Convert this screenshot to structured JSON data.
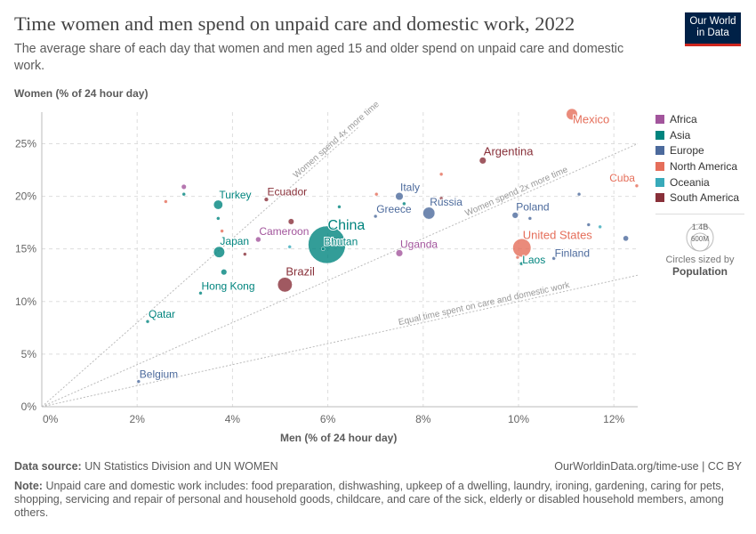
{
  "header": {
    "title": "Time women and men spend on unpaid care and domestic work, 2022",
    "subtitle": "The average share of each day that women and men aged 15 and older spend on unpaid care and domestic work.",
    "logo": "Our World in Data"
  },
  "chart_data": {
    "type": "scatter",
    "title": "Time women and men spend on unpaid care and domestic work, 2022",
    "xlabel": "Men (% of 24 hour day)",
    "ylabel": "Women (% of 24 hour day)",
    "xlim": [
      0,
      12.5
    ],
    "ylim": [
      0,
      28
    ],
    "xticks": [
      "0%",
      "2%",
      "4%",
      "6%",
      "8%",
      "10%",
      "12%"
    ],
    "yticks": [
      "0%",
      "5%",
      "10%",
      "15%",
      "20%",
      "25%"
    ],
    "grid": true,
    "reference_lines": [
      {
        "label": "Equal time spent on care and domestic work",
        "ratio": 1
      },
      {
        "label": "Women spend 2x more time",
        "ratio": 2
      },
      {
        "label": "Women spend 4x more time",
        "ratio": 4
      }
    ],
    "legend_position": "right",
    "regions": [
      {
        "name": "Africa",
        "color": "#a2559c"
      },
      {
        "name": "Asia",
        "color": "#00847e"
      },
      {
        "name": "Europe",
        "color": "#4c6a9c"
      },
      {
        "name": "North America",
        "color": "#e56e5a"
      },
      {
        "name": "Oceania",
        "color": "#38aaba"
      },
      {
        "name": "South America",
        "color": "#883039"
      }
    ],
    "size_legend": {
      "values": [
        "1.4B",
        "600M"
      ],
      "caption": "Circles sized by",
      "variable": "Population"
    },
    "points": [
      {
        "label": "Mexico",
        "region": "North America",
        "x": 11.12,
        "y": 27.8,
        "pop": 128
      },
      {
        "label": "Argentina",
        "region": "South America",
        "x": 9.25,
        "y": 23.4,
        "pop": 46
      },
      {
        "label": "Cuba",
        "region": "North America",
        "x": 12.48,
        "y": 21.0,
        "pop": 11
      },
      {
        "label": "Italy",
        "region": "Europe",
        "x": 7.5,
        "y": 20.0,
        "pop": 59
      },
      {
        "label": "Russia",
        "region": "Europe",
        "x": 8.12,
        "y": 18.4,
        "pop": 144
      },
      {
        "label": "Greece",
        "region": "Europe",
        "x": 7.0,
        "y": 18.1,
        "pop": 10
      },
      {
        "label": "Poland",
        "region": "Europe",
        "x": 9.93,
        "y": 18.2,
        "pop": 37
      },
      {
        "label": "United States",
        "region": "North America",
        "x": 10.07,
        "y": 15.1,
        "pop": 335
      },
      {
        "label": "Laos",
        "region": "Asia",
        "x": 10.06,
        "y": 13.6,
        "pop": 7
      },
      {
        "label": "Finland",
        "region": "Europe",
        "x": 10.74,
        "y": 14.1,
        "pop": 5.5
      },
      {
        "label": "Uganda",
        "region": "Africa",
        "x": 7.5,
        "y": 14.6,
        "pop": 47
      },
      {
        "label": "China",
        "region": "Asia",
        "x": 5.98,
        "y": 15.4,
        "pop": 1410
      },
      {
        "label": "Bhutan",
        "region": "Asia",
        "x": 5.9,
        "y": 15.0,
        "pop": 0.8
      },
      {
        "label": "Turkey",
        "region": "Asia",
        "x": 3.7,
        "y": 19.2,
        "pop": 85
      },
      {
        "label": "Ecuador",
        "region": "South America",
        "x": 4.71,
        "y": 19.7,
        "pop": 18
      },
      {
        "label": "Cameroon",
        "region": "Africa",
        "x": 4.54,
        "y": 15.9,
        "pop": 28
      },
      {
        "label": "Japan",
        "region": "Asia",
        "x": 3.72,
        "y": 14.7,
        "pop": 124
      },
      {
        "label": "Brazil",
        "region": "South America",
        "x": 5.1,
        "y": 11.6,
        "pop": 216
      },
      {
        "label": "Hong Kong",
        "region": "Asia",
        "x": 3.33,
        "y": 10.8,
        "pop": 7.5
      },
      {
        "label": "Qatar",
        "region": "Asia",
        "x": 2.22,
        "y": 8.1,
        "pop": 2.7
      },
      {
        "label": "Belgium",
        "region": "Europe",
        "x": 2.03,
        "y": 2.4,
        "pop": 11.7
      },
      {
        "label": "",
        "region": "Africa",
        "x": 2.98,
        "y": 20.9,
        "pop": 25
      },
      {
        "label": "",
        "region": "Asia",
        "x": 2.98,
        "y": 20.2,
        "pop": 5
      },
      {
        "label": "",
        "region": "North America",
        "x": 2.6,
        "y": 19.5,
        "pop": 8
      },
      {
        "label": "",
        "region": "Asia",
        "x": 3.7,
        "y": 17.9,
        "pop": 5
      },
      {
        "label": "",
        "region": "North America",
        "x": 3.78,
        "y": 16.7,
        "pop": 5
      },
      {
        "label": "",
        "region": "South America",
        "x": 5.23,
        "y": 17.6,
        "pop": 34
      },
      {
        "label": "",
        "region": "South America",
        "x": 4.26,
        "y": 14.5,
        "pop": 6
      },
      {
        "label": "",
        "region": "Asia",
        "x": 3.82,
        "y": 12.8,
        "pop": 35
      },
      {
        "label": "",
        "region": "Oceania",
        "x": 5.2,
        "y": 15.2,
        "pop": 5
      },
      {
        "label": "",
        "region": "Asia",
        "x": 6.24,
        "y": 19.0,
        "pop": 5
      },
      {
        "label": "",
        "region": "North America",
        "x": 7.02,
        "y": 20.2,
        "pop": 6
      },
      {
        "label": "",
        "region": "Asia",
        "x": 7.6,
        "y": 19.3,
        "pop": 5
      },
      {
        "label": "",
        "region": "North America",
        "x": 8.38,
        "y": 22.1,
        "pop": 6
      },
      {
        "label": "",
        "region": "South America",
        "x": 8.38,
        "y": 19.8,
        "pop": 5
      },
      {
        "label": "",
        "region": "Europe",
        "x": 10.24,
        "y": 17.9,
        "pop": 5
      },
      {
        "label": "",
        "region": "Europe",
        "x": 11.27,
        "y": 20.2,
        "pop": 5
      },
      {
        "label": "",
        "region": "Europe",
        "x": 11.47,
        "y": 17.3,
        "pop": 5
      },
      {
        "label": "",
        "region": "Oceania",
        "x": 11.71,
        "y": 17.1,
        "pop": 10
      },
      {
        "label": "",
        "region": "Europe",
        "x": 12.25,
        "y": 16.0,
        "pop": 30
      },
      {
        "label": "",
        "region": "North America",
        "x": 9.98,
        "y": 14.2,
        "pop": 10
      }
    ]
  },
  "footer": {
    "source_label": "Data source:",
    "source": "UN Statistics Division and UN WOMEN",
    "url": "OurWorldinData.org/time-use | CC BY",
    "note_label": "Note:",
    "note": "Unpaid care and domestic work includes: food preparation, dishwashing, upkeep of a dwelling, laundry, ironing, gardening, caring for pets, shopping, servicing and repair of personal and household goods, childcare, and care of the sick, elderly or disabled household members, among others."
  }
}
